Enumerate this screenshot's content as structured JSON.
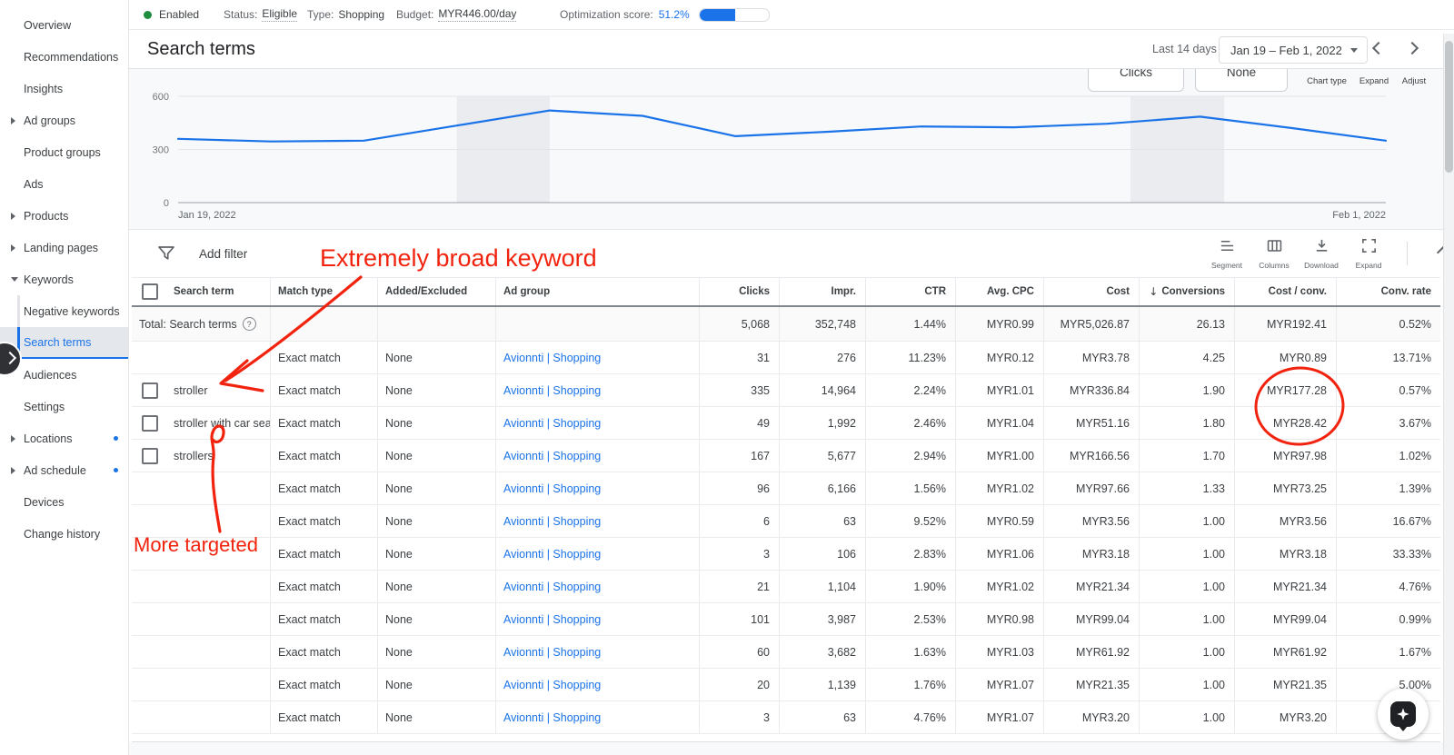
{
  "status_bar": {
    "enabled_label": "Enabled",
    "status_label": "Status:",
    "status_value": "Eligible",
    "type_label": "Type:",
    "type_value": "Shopping",
    "budget_label": "Budget:",
    "budget_value": "MYR446.00/day",
    "opt_label": "Optimization score:",
    "opt_value": "51.2%",
    "opt_percent": 51.2,
    "enabled_color": "#1e8e3e",
    "accent_color": "#1a73e8"
  },
  "sidebar": {
    "items": [
      {
        "label": "Overview",
        "type": "item"
      },
      {
        "label": "Recommendations",
        "type": "item"
      },
      {
        "label": "Insights",
        "type": "item"
      },
      {
        "label": "Ad groups",
        "type": "parent"
      },
      {
        "label": "Product groups",
        "type": "item"
      },
      {
        "label": "Ads",
        "type": "item"
      },
      {
        "label": "Products",
        "type": "parent"
      },
      {
        "label": "Landing pages",
        "type": "parent"
      },
      {
        "label": "Keywords",
        "type": "parent-open"
      },
      {
        "label": "Negative keywords",
        "type": "sub"
      },
      {
        "label": "Search terms",
        "type": "sub",
        "selected": true
      },
      {
        "label": "Audiences",
        "type": "item"
      },
      {
        "label": "Settings",
        "type": "item"
      },
      {
        "label": "Locations",
        "type": "parent",
        "dot": true
      },
      {
        "label": "Ad schedule",
        "type": "parent",
        "dot": true
      },
      {
        "label": "Devices",
        "type": "item"
      },
      {
        "label": "Change history",
        "type": "item"
      }
    ]
  },
  "header": {
    "title": "Search terms",
    "range_label": "Last 14 days",
    "date_range": "Jan 19 – Feb 1, 2022"
  },
  "chart_toolbar": {
    "metric1": "Clicks",
    "metric2": "None",
    "buttons": [
      "Chart type",
      "Expand",
      "Adjust"
    ]
  },
  "chart_data": {
    "type": "line",
    "title": "",
    "series": [
      {
        "name": "Clicks",
        "color": "#1a73e8",
        "values": [
          360,
          345,
          350,
          435,
          520,
          490,
          375,
          400,
          430,
          425,
          445,
          485,
          420,
          350
        ]
      }
    ],
    "x": [
      "Jan 19",
      "Jan 20",
      "Jan 21",
      "Jan 22",
      "Jan 23",
      "Jan 24",
      "Jan 25",
      "Jan 26",
      "Jan 27",
      "Jan 28",
      "Jan 29",
      "Jan 30",
      "Jan 31",
      "Feb 1"
    ],
    "x_axis_labels": [
      "Jan 19, 2022",
      "Feb 1, 2022"
    ],
    "ylim": [
      0,
      600
    ],
    "yticks": [
      0,
      300,
      600
    ],
    "weekend_bands": [
      [
        3,
        4
      ],
      [
        10.25,
        11.26
      ]
    ],
    "grid": true,
    "legend": false
  },
  "table_toolbar": {
    "add_filter_label": "Add filter",
    "tools": [
      {
        "icon": "segment-icon",
        "label": "Segment"
      },
      {
        "icon": "columns-icon",
        "label": "Columns"
      },
      {
        "icon": "download-icon",
        "label": "Download"
      },
      {
        "icon": "expand-icon",
        "label": "Expand"
      }
    ]
  },
  "table": {
    "columns": [
      "Search term",
      "Match type",
      "Added/Excluded",
      "Ad group",
      "Clicks",
      "Impr.",
      "CTR",
      "Avg. CPC",
      "Cost",
      "Conversions",
      "Cost / conv.",
      "Conv. rate"
    ],
    "sorted_column": "Conversions",
    "total_label": "Total: Search terms",
    "total": [
      "5,068",
      "352,748",
      "1.44%",
      "MYR0.99",
      "MYR5,026.87",
      "26.13",
      "MYR192.41",
      "0.52%"
    ],
    "rows": [
      {
        "term": "",
        "has_checkbox": false,
        "match_type": "Exact match",
        "added_excluded": "None",
        "ad_group": "Avionnti | Shopping",
        "metrics": [
          "31",
          "276",
          "11.23%",
          "MYR0.12",
          "MYR3.78",
          "4.25",
          "MYR0.89",
          "13.71%"
        ]
      },
      {
        "term": "stroller",
        "has_checkbox": true,
        "match_type": "Exact match",
        "added_excluded": "None",
        "ad_group": "Avionnti | Shopping",
        "metrics": [
          "335",
          "14,964",
          "2.24%",
          "MYR1.01",
          "MYR336.84",
          "1.90",
          "MYR177.28",
          "0.57%"
        ]
      },
      {
        "term": "stroller with car seat",
        "has_checkbox": true,
        "match_type": "Exact match",
        "added_excluded": "None",
        "ad_group": "Avionnti | Shopping",
        "metrics": [
          "49",
          "1,992",
          "2.46%",
          "MYR1.04",
          "MYR51.16",
          "1.80",
          "MYR28.42",
          "3.67%"
        ]
      },
      {
        "term": "strollers",
        "has_checkbox": true,
        "match_type": "Exact match",
        "added_excluded": "None",
        "ad_group": "Avionnti | Shopping",
        "metrics": [
          "167",
          "5,677",
          "2.94%",
          "MYR1.00",
          "MYR166.56",
          "1.70",
          "MYR97.98",
          "1.02%"
        ]
      },
      {
        "term": "",
        "has_checkbox": false,
        "match_type": "Exact match",
        "added_excluded": "None",
        "ad_group": "Avionnti | Shopping",
        "metrics": [
          "96",
          "6,166",
          "1.56%",
          "MYR1.02",
          "MYR97.66",
          "1.33",
          "MYR73.25",
          "1.39%"
        ]
      },
      {
        "term": "",
        "has_checkbox": false,
        "match_type": "Exact match",
        "added_excluded": "None",
        "ad_group": "Avionnti | Shopping",
        "metrics": [
          "6",
          "63",
          "9.52%",
          "MYR0.59",
          "MYR3.56",
          "1.00",
          "MYR3.56",
          "16.67%"
        ]
      },
      {
        "term": "",
        "has_checkbox": false,
        "match_type": "Exact match",
        "added_excluded": "None",
        "ad_group": "Avionnti | Shopping",
        "metrics": [
          "3",
          "106",
          "2.83%",
          "MYR1.06",
          "MYR3.18",
          "1.00",
          "MYR3.18",
          "33.33%"
        ]
      },
      {
        "term": "",
        "has_checkbox": false,
        "match_type": "Exact match",
        "added_excluded": "None",
        "ad_group": "Avionnti | Shopping",
        "metrics": [
          "21",
          "1,104",
          "1.90%",
          "MYR1.02",
          "MYR21.34",
          "1.00",
          "MYR21.34",
          "4.76%"
        ]
      },
      {
        "term": "",
        "has_checkbox": false,
        "match_type": "Exact match",
        "added_excluded": "None",
        "ad_group": "Avionnti | Shopping",
        "metrics": [
          "101",
          "3,987",
          "2.53%",
          "MYR0.98",
          "MYR99.04",
          "1.00",
          "MYR99.04",
          "0.99%"
        ]
      },
      {
        "term": "",
        "has_checkbox": false,
        "match_type": "Exact match",
        "added_excluded": "None",
        "ad_group": "Avionnti | Shopping",
        "metrics": [
          "60",
          "3,682",
          "1.63%",
          "MYR1.03",
          "MYR61.92",
          "1.00",
          "MYR61.92",
          "1.67%"
        ]
      },
      {
        "term": "",
        "has_checkbox": false,
        "match_type": "Exact match",
        "added_excluded": "None",
        "ad_group": "Avionnti | Shopping",
        "metrics": [
          "20",
          "1,139",
          "1.76%",
          "MYR1.07",
          "MYR21.35",
          "1.00",
          "MYR21.35",
          "5.00%"
        ]
      },
      {
        "term": "",
        "has_checkbox": false,
        "match_type": "Exact match",
        "added_excluded": "None",
        "ad_group": "Avionnti | Shopping",
        "metrics": [
          "3",
          "63",
          "4.76%",
          "MYR1.07",
          "MYR3.20",
          "1.00",
          "MYR3.20",
          ""
        ]
      }
    ]
  },
  "annotations": {
    "broad_label": "Extremely broad keyword",
    "targeted_label": "More targeted",
    "color": "#f2230e"
  }
}
